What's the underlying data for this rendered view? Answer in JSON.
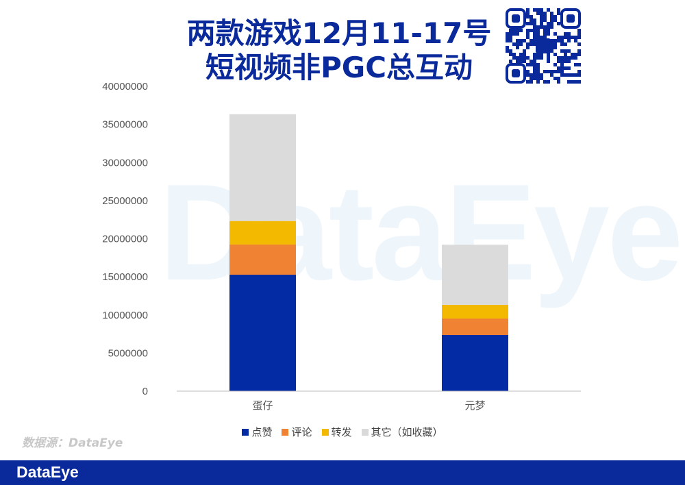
{
  "title_line1": "两款游戏12月11-17号",
  "title_line2": "短视频非PGC总互动",
  "watermark": "DataEye",
  "source": "数据源：DataEye",
  "footer_logo": "DataEye",
  "chart_data": {
    "type": "bar",
    "stacked": true,
    "title": "两款游戏12月11-17号短视频非PGC总互动",
    "categories": [
      "蛋仔",
      "元梦"
    ],
    "series": [
      {
        "name": "点赞",
        "color": "#032ca4",
        "values": [
          15280000,
          7370000
        ]
      },
      {
        "name": "评论",
        "color": "#ef8233",
        "values": [
          3960000,
          2160000
        ]
      },
      {
        "name": "转发",
        "color": "#f2b900",
        "values": [
          3080000,
          1800000
        ]
      },
      {
        "name": "其它（如收藏）",
        "color": "#d9d9d9",
        "values": [
          14020000,
          7880000
        ]
      }
    ],
    "ylim": [
      0,
      40000000
    ],
    "yticks": [
      "0",
      "5000000",
      "10000000",
      "15000000",
      "20000000",
      "25000000",
      "30000000",
      "35000000",
      "40000000"
    ],
    "legend_position": "bottom",
    "grid": false
  }
}
